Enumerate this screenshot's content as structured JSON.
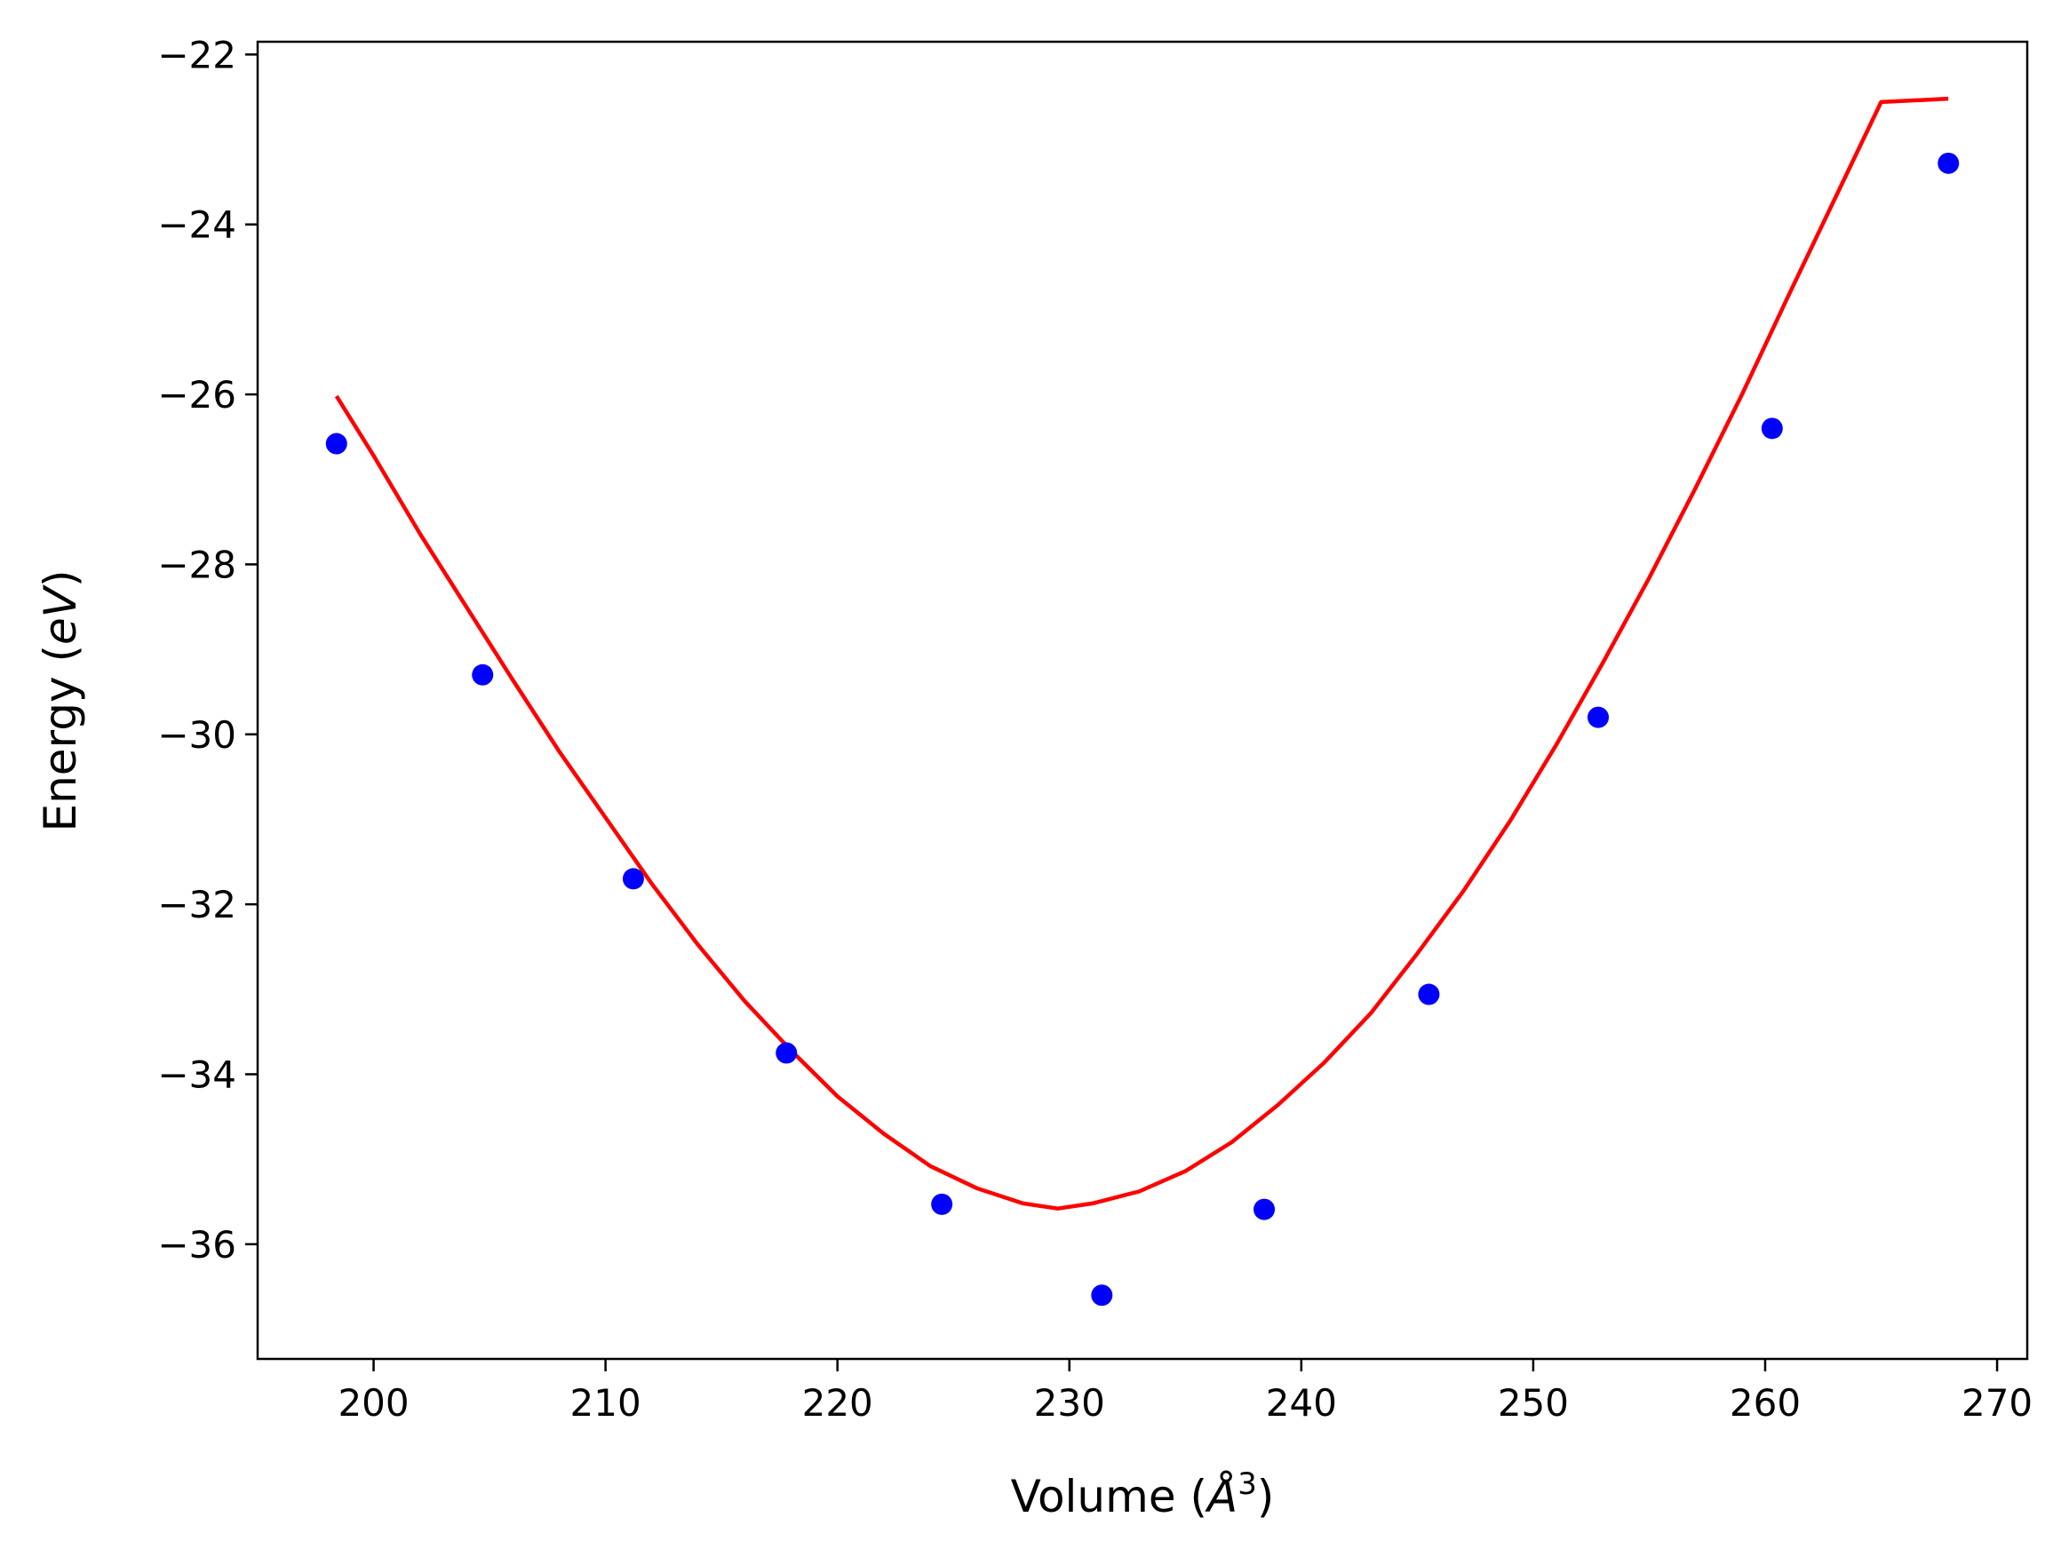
{
  "chart_data": {
    "type": "scatter",
    "title": "",
    "xlabel_parts": {
      "prefix": "Volume (",
      "unit": "Å",
      "exponent": "3",
      "suffix": ")"
    },
    "ylabel_parts": {
      "prefix": "Energy (",
      "unit": "eV",
      "suffix": ")"
    },
    "xlim": [
      195,
      271.3
    ],
    "ylim": [
      -37.35,
      -21.85
    ],
    "x_ticks": [
      200,
      210,
      220,
      230,
      240,
      250,
      260,
      270
    ],
    "y_ticks": [
      -36,
      -34,
      -32,
      -30,
      -28,
      -26,
      -24,
      -22
    ],
    "x_tick_labels": [
      "200",
      "210",
      "220",
      "230",
      "240",
      "250",
      "260",
      "270"
    ],
    "y_tick_labels": [
      "−36",
      "−34",
      "−32",
      "−30",
      "−28",
      "−26",
      "−24",
      "−22"
    ],
    "grid": false,
    "series": [
      {
        "kind": "points",
        "color": "#0000ff",
        "x": [
          198.4,
          204.7,
          211.2,
          217.8,
          224.5,
          231.4,
          238.4,
          245.5,
          252.8,
          260.3,
          267.9
        ],
        "y": [
          -26.58,
          -29.3,
          -31.7,
          -33.75,
          -35.53,
          -36.6,
          -35.59,
          -33.06,
          -29.8,
          -26.4,
          -23.28
        ]
      },
      {
        "kind": "fit",
        "color": "#ff0000",
        "x": [
          198.4,
          200,
          202,
          204,
          206,
          208,
          210,
          212,
          214,
          216,
          218,
          220,
          222,
          224,
          226,
          228,
          229.5,
          231,
          233,
          235,
          237,
          239,
          241,
          243,
          245,
          247,
          249,
          251,
          253,
          255,
          257,
          259,
          261,
          263,
          265,
          267.9
        ],
        "y": [
          -26.02,
          -26.72,
          -27.64,
          -28.5,
          -29.36,
          -30.2,
          -30.98,
          -31.76,
          -32.48,
          -33.14,
          -33.72,
          -34.26,
          -34.7,
          -35.08,
          -35.34,
          -35.52,
          -35.58,
          -35.52,
          -35.38,
          -35.14,
          -34.8,
          -34.36,
          -33.86,
          -33.28,
          -32.58,
          -31.84,
          -31.02,
          -30.12,
          -29.16,
          -28.16,
          -27.1,
          -26.0,
          -24.84,
          -23.7,
          -22.56,
          -22.52
        ]
      }
    ]
  }
}
